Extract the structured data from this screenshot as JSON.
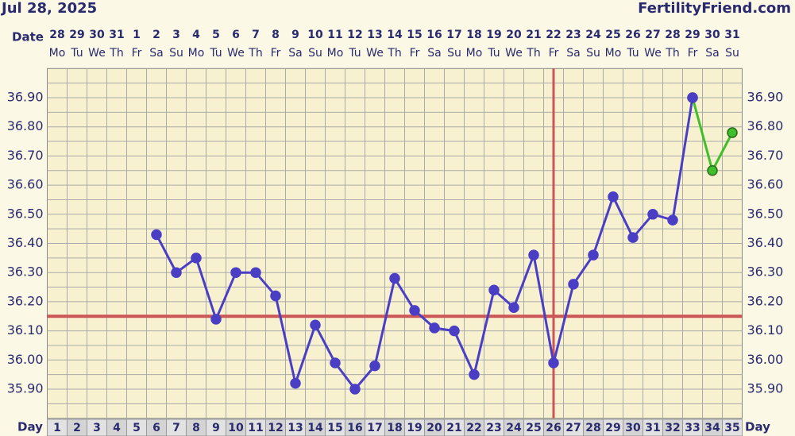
{
  "chart_data": {
    "type": "line",
    "title": "Jul 28, 2025",
    "brand": "FertilityFriend.com",
    "date_label": "Date",
    "day_label": "Day",
    "dates": [
      "28",
      "29",
      "30",
      "31",
      "1",
      "2",
      "3",
      "4",
      "5",
      "6",
      "7",
      "8",
      "9",
      "10",
      "11",
      "12",
      "13",
      "14",
      "15",
      "16",
      "17",
      "18",
      "19",
      "20",
      "21",
      "22",
      "23",
      "24",
      "25",
      "26",
      "27",
      "28",
      "29",
      "30",
      "31"
    ],
    "weekdays": [
      "Mo",
      "Tu",
      "We",
      "Th",
      "Fr",
      "Sa",
      "Su",
      "Mo",
      "Tu",
      "We",
      "Th",
      "Fr",
      "Sa",
      "Su",
      "Mo",
      "Tu",
      "We",
      "Th",
      "Fr",
      "Sa",
      "Su",
      "Mo",
      "Tu",
      "We",
      "Th",
      "Fr",
      "Sa",
      "Su",
      "Mo",
      "Tu",
      "We",
      "Th",
      "Fr",
      "Sa",
      "Su"
    ],
    "categories": [
      "1",
      "2",
      "3",
      "4",
      "5",
      "6",
      "7",
      "8",
      "9",
      "10",
      "11",
      "12",
      "13",
      "14",
      "15",
      "16",
      "17",
      "18",
      "19",
      "20",
      "21",
      "22",
      "23",
      "24",
      "25",
      "26",
      "27",
      "28",
      "29",
      "30",
      "31",
      "32",
      "33",
      "34",
      "35"
    ],
    "series": [
      {
        "color": "#4a3fc4",
        "values": [
          null,
          null,
          null,
          null,
          null,
          36.43,
          36.3,
          36.35,
          36.14,
          36.3,
          36.3,
          36.22,
          35.92,
          36.12,
          35.99,
          35.9,
          35.98,
          36.28,
          36.17,
          36.11,
          36.1,
          35.95,
          36.24,
          36.18,
          36.36,
          35.99,
          36.26,
          36.36,
          36.56,
          36.42,
          36.5,
          36.48,
          36.9,
          null,
          null
        ]
      },
      {
        "color": "#3fbf2a",
        "values": [
          null,
          null,
          null,
          null,
          null,
          null,
          null,
          null,
          null,
          null,
          null,
          null,
          null,
          null,
          null,
          null,
          null,
          null,
          null,
          null,
          null,
          null,
          null,
          null,
          null,
          null,
          null,
          null,
          null,
          null,
          null,
          null,
          36.9,
          36.65,
          36.78
        ]
      }
    ],
    "coverline": 36.15,
    "ovulation_day": 26,
    "marker_color": "#cc5555",
    "ylim": [
      35.8,
      37.0
    ],
    "yticks": [
      {
        "value": 35.9,
        "label": "35.90"
      },
      {
        "value": 36.0,
        "label": "36.00"
      },
      {
        "value": 36.1,
        "label": "36.10"
      },
      {
        "value": 36.2,
        "label": "36.20"
      },
      {
        "value": 36.3,
        "label": "36.30"
      },
      {
        "value": 36.4,
        "label": "36.40"
      },
      {
        "value": 36.5,
        "label": "36.50"
      },
      {
        "value": 36.6,
        "label": "36.60"
      },
      {
        "value": 36.7,
        "label": "36.70"
      },
      {
        "value": 36.8,
        "label": "36.80"
      },
      {
        "value": 36.9,
        "label": "36.90"
      }
    ],
    "grid": true
  }
}
